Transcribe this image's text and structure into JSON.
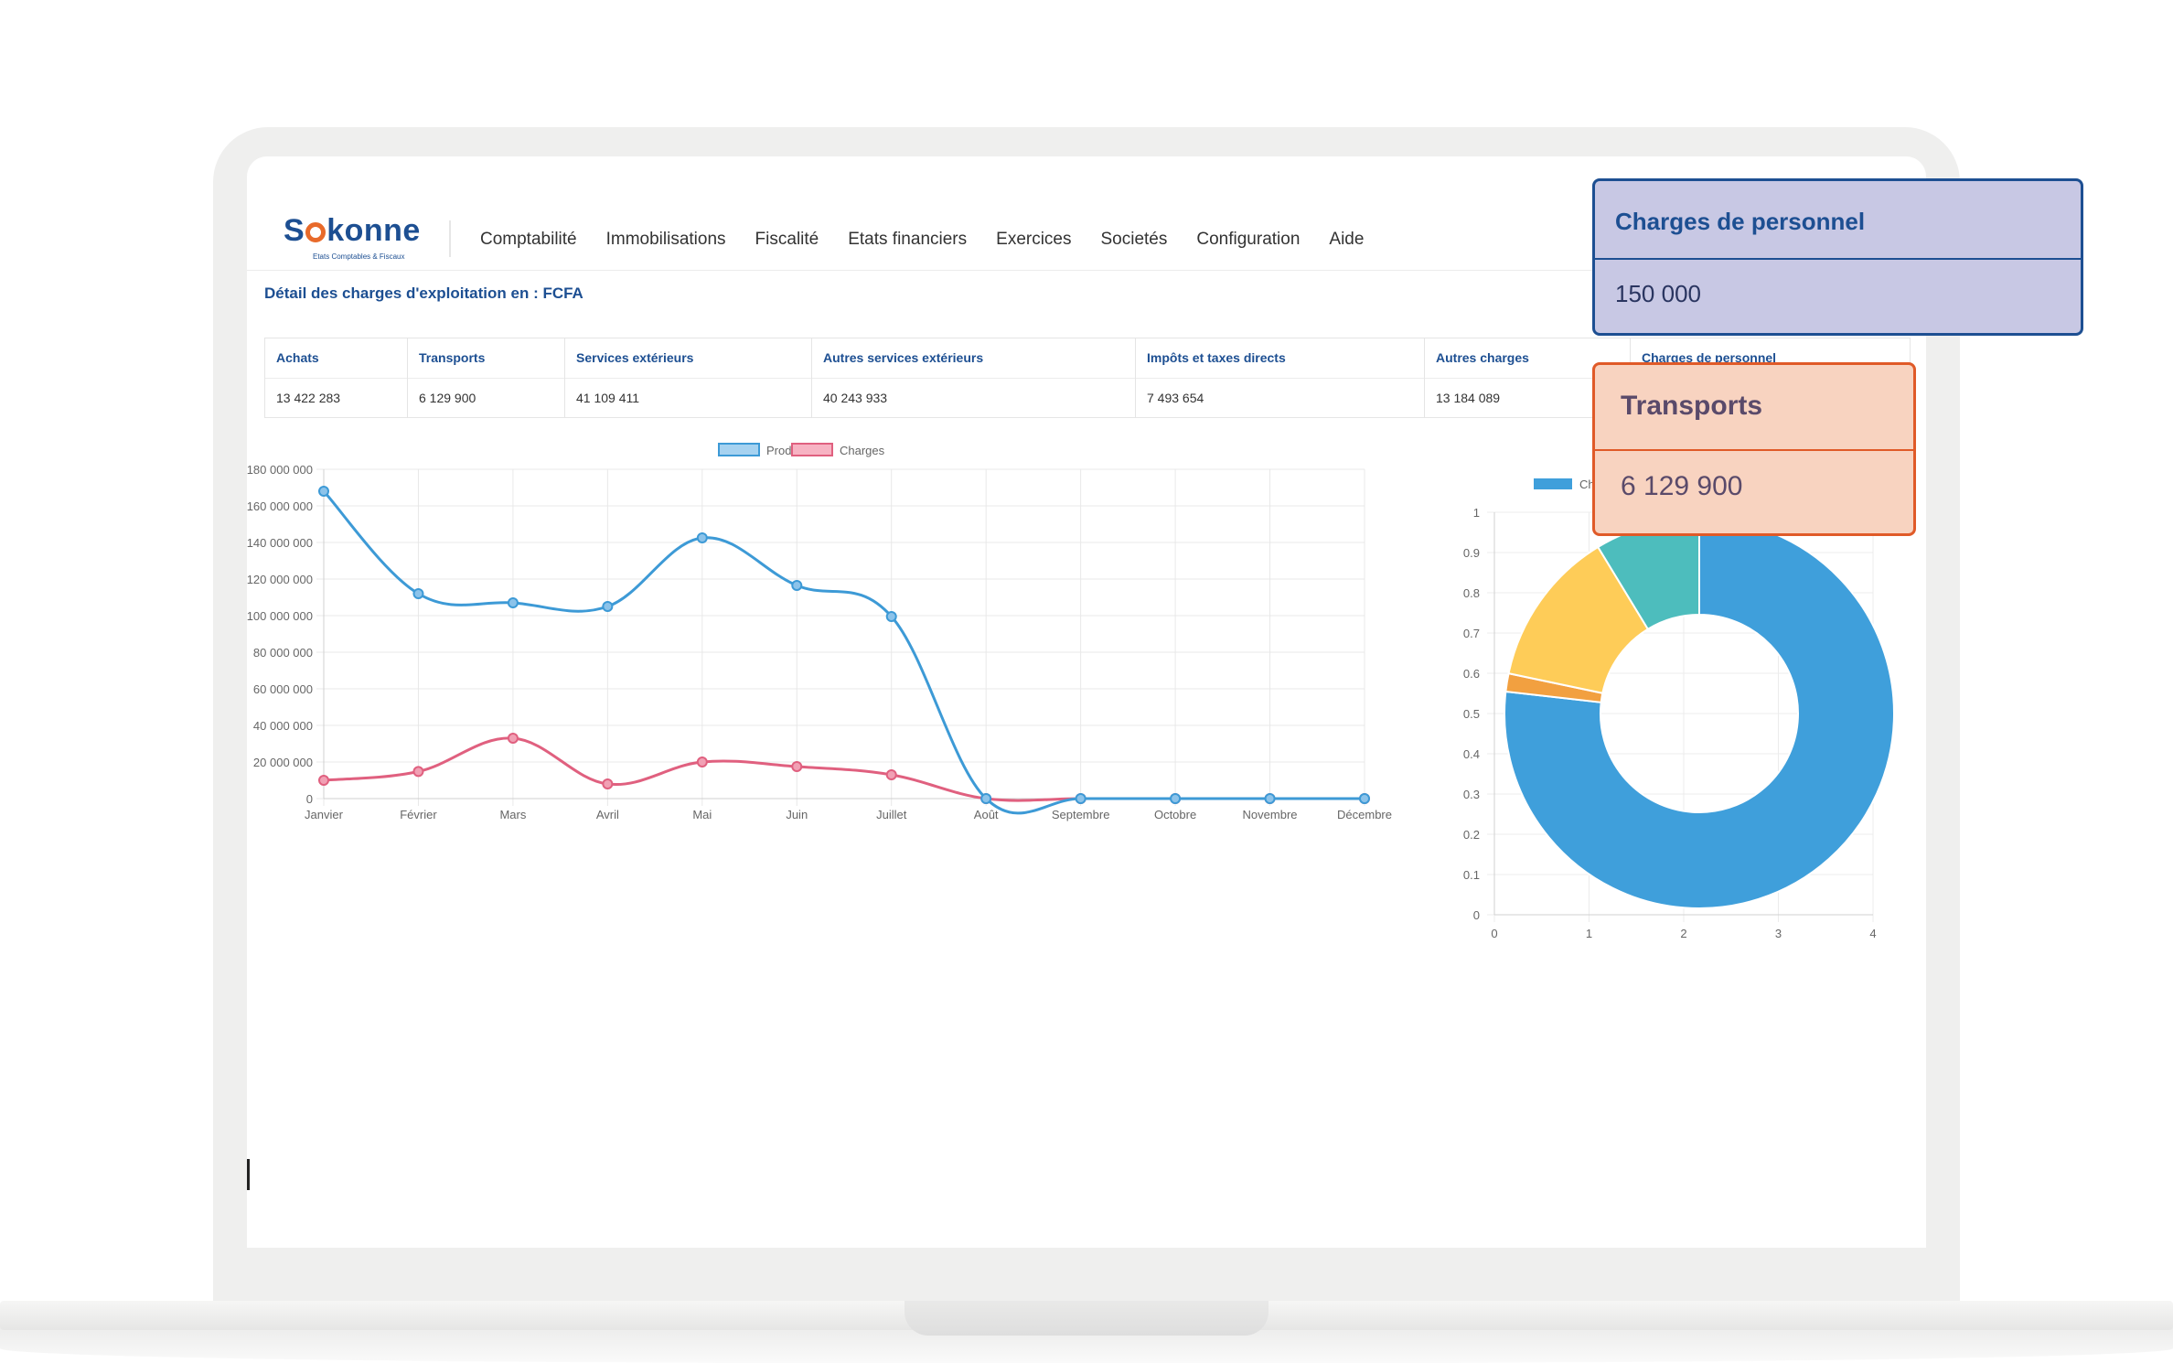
{
  "brand": {
    "logo_text_start": "S",
    "logo_text_end": "konne",
    "logo_subtitle": "Etats Comptables & Fiscaux"
  },
  "nav": {
    "items": [
      "Comptabilité",
      "Immobilisations",
      "Fiscalité",
      "Etats financiers",
      "Exercices",
      "Societés",
      "Configuration",
      "Aide"
    ]
  },
  "page": {
    "title": "Détail des charges d'exploitation en : FCFA"
  },
  "table": {
    "headers": [
      "Achats",
      "Transports",
      "Services extérieurs",
      "Autres services extérieurs",
      "Impôts et taxes directs",
      "Autres charges",
      "Charges de personnel"
    ],
    "values": [
      "13 422 283",
      "6 129 900",
      "41 109 411",
      "40 243 933",
      "7 493 654",
      "13 184 089",
      ""
    ]
  },
  "cards": {
    "personnel": {
      "title": "Charges de personnel",
      "value": "150 000"
    },
    "transports": {
      "title": "Transports",
      "value": "6 129 900"
    }
  },
  "chart_data": [
    {
      "type": "line",
      "categories": [
        "Janvier",
        "Février",
        "Mars",
        "Avril",
        "Mai",
        "Juin",
        "Juillet",
        "Août",
        "Septembre",
        "Octobre",
        "Novembre",
        "Décembre"
      ],
      "series": [
        {
          "name": "Produits",
          "color": "#3d9ad6",
          "values": [
            168000000,
            112000000,
            107000000,
            105000000,
            142500000,
            116500000,
            99500000,
            0,
            0,
            0,
            0,
            0
          ]
        },
        {
          "name": "Charges",
          "color": "#e0607f",
          "values": [
            10000000,
            14800000,
            33000000,
            8000000,
            20000000,
            17500000,
            13000000,
            0,
            0,
            0,
            0,
            0
          ]
        }
      ],
      "ylim": [
        0,
        180000000
      ],
      "yticks": [
        "0",
        "20 000 000",
        "40 000 000",
        "60 000 000",
        "80 000 000",
        "100 000 000",
        "120 000 000",
        "140 000 000",
        "160 000 000",
        "180 000 000"
      ],
      "grid": true,
      "legend": "top"
    },
    {
      "type": "pie",
      "hole": true,
      "slices": [
        {
          "name": "Chiffre d'affaires",
          "color": "#3f9fdb",
          "value": 0.768
        },
        {
          "name": "",
          "color": "#f2a040",
          "value": 0.015
        },
        {
          "name": "",
          "color": "#fecc58",
          "value": 0.13
        },
        {
          "name": "",
          "color": "#4dbdbd",
          "value": 0.087
        }
      ],
      "legend_label": "Chiffre d'affaires",
      "xticks": [
        "0",
        "1",
        "2",
        "3",
        "4"
      ],
      "yticks": [
        "0",
        "0.1",
        "0.2",
        "0.3",
        "0.4",
        "0.5",
        "0.6",
        "0.7",
        "0.8",
        "0.9",
        "1"
      ],
      "grid": true,
      "legend": "top"
    }
  ]
}
